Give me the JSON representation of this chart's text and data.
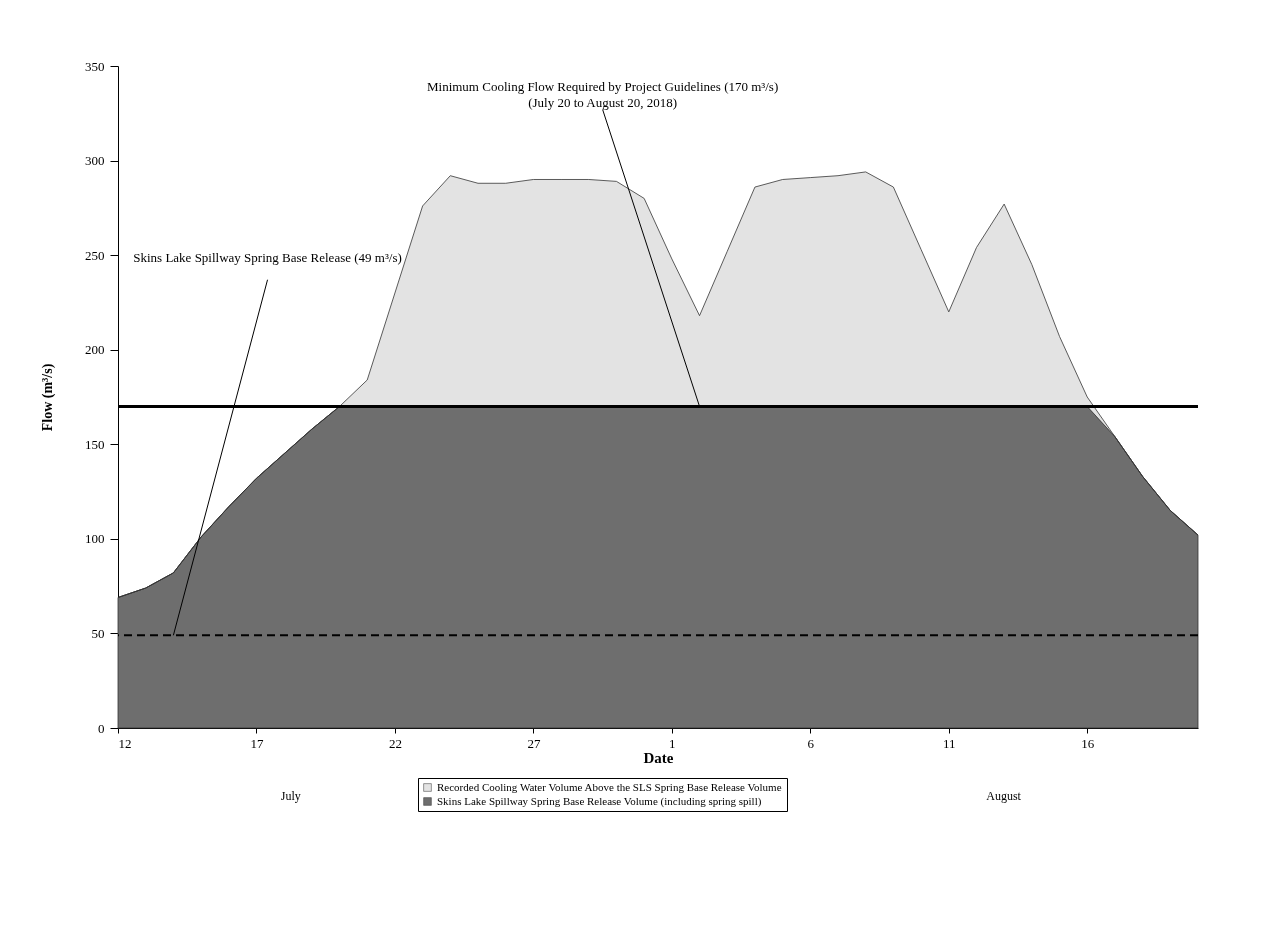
{
  "chart_data": {
    "type": "area",
    "stacked": true,
    "xlabel": "Date",
    "ylabel": "Flow (m³/s)",
    "x": [
      "2018-07-12",
      "2018-07-13",
      "2018-07-14",
      "2018-07-15",
      "2018-07-16",
      "2018-07-17",
      "2018-07-18",
      "2018-07-19",
      "2018-07-20",
      "2018-07-21",
      "2018-07-22",
      "2018-07-23",
      "2018-07-24",
      "2018-07-25",
      "2018-07-26",
      "2018-07-27",
      "2018-07-28",
      "2018-07-29",
      "2018-07-30",
      "2018-07-31",
      "2018-08-01",
      "2018-08-02",
      "2018-08-03",
      "2018-08-04",
      "2018-08-05",
      "2018-08-06",
      "2018-08-07",
      "2018-08-08",
      "2018-08-09",
      "2018-08-10",
      "2018-08-11",
      "2018-08-12",
      "2018-08-13",
      "2018-08-14",
      "2018-08-15",
      "2018-08-16",
      "2018-08-17",
      "2018-08-18",
      "2018-08-19",
      "2018-08-20"
    ],
    "series": [
      {
        "name": "Skins Lake Spillway Spring Base Release Volume (including spring spill)",
        "color": "#6e6e6e",
        "values": [
          69,
          74,
          82,
          101,
          117,
          132,
          145,
          158,
          170,
          170,
          170,
          170,
          170,
          170,
          170,
          170,
          170,
          170,
          170,
          170,
          170,
          170,
          170,
          170,
          170,
          170,
          170,
          170,
          170,
          170,
          170,
          170,
          170,
          170,
          170,
          170,
          154,
          133,
          115,
          102
        ]
      },
      {
        "name": "Recorded Cooling Water Volume Above the SLS Spring Base Release Volume",
        "color": "#e3e3e3",
        "values": [
          0,
          0,
          0,
          0,
          0,
          0,
          0,
          0,
          0,
          14,
          60,
          106,
          122,
          118,
          118,
          120,
          120,
          120,
          119,
          110,
          78,
          48,
          82,
          116,
          120,
          121,
          122,
          124,
          116,
          83,
          50,
          84,
          107,
          75,
          37,
          5,
          0,
          0,
          0,
          0
        ]
      }
    ],
    "xlim": [
      "2018-07-12",
      "2018-08-20"
    ],
    "xticks": [
      {
        "value": "2018-07-12",
        "label": "12"
      },
      {
        "value": "2018-07-17",
        "label": "17"
      },
      {
        "value": "2018-07-22",
        "label": "22"
      },
      {
        "value": "2018-07-27",
        "label": "27"
      },
      {
        "value": "2018-08-01",
        "label": "1"
      },
      {
        "value": "2018-08-06",
        "label": "6"
      },
      {
        "value": "2018-08-11",
        "label": "11"
      },
      {
        "value": "2018-08-16",
        "label": "16"
      }
    ],
    "ylim": [
      0,
      350
    ],
    "yticks": [
      0,
      50,
      100,
      150,
      200,
      250,
      300,
      350
    ],
    "ref_lines": [
      {
        "axis": "y",
        "value": 49,
        "line_style": "dashed",
        "color": "#000000"
      },
      {
        "axis": "y",
        "value": 170,
        "line_style": "solid",
        "color": "#000000"
      }
    ],
    "annotations": [
      {
        "text": "Minimum Cooling Flow Required by Project Guidelines (170 m³/s)\n(July 20 to August 20, 2018)",
        "x": "2018-08-02",
        "y": 170
      },
      {
        "text": "Skins Lake Spillway Spring Base Release (49 m³/s)",
        "x": "2018-07-14",
        "y": 49
      },
      "July",
      "August"
    ],
    "legend": "bottom",
    "grid": false
  }
}
